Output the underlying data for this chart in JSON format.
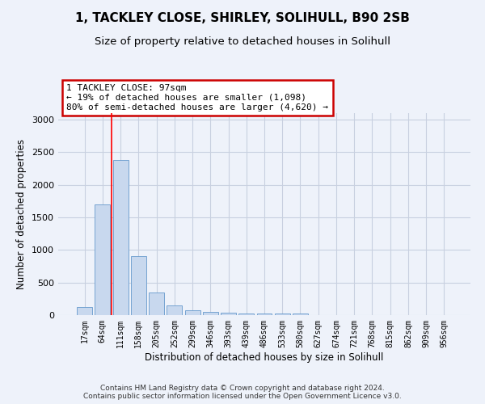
{
  "title1": "1, TACKLEY CLOSE, SHIRLEY, SOLIHULL, B90 2SB",
  "title2": "Size of property relative to detached houses in Solihull",
  "xlabel": "Distribution of detached houses by size in Solihull",
  "ylabel": "Number of detached properties",
  "categories": [
    "17sqm",
    "64sqm",
    "111sqm",
    "158sqm",
    "205sqm",
    "252sqm",
    "299sqm",
    "346sqm",
    "393sqm",
    "439sqm",
    "486sqm",
    "533sqm",
    "580sqm",
    "627sqm",
    "674sqm",
    "721sqm",
    "768sqm",
    "815sqm",
    "862sqm",
    "909sqm",
    "956sqm"
  ],
  "values": [
    130,
    1700,
    2380,
    910,
    345,
    145,
    80,
    55,
    40,
    30,
    25,
    20,
    30,
    0,
    0,
    0,
    0,
    0,
    0,
    0,
    0
  ],
  "bar_color": "#c8d8ee",
  "bar_edge_color": "#6699cc",
  "annotation_title": "1 TACKLEY CLOSE: 97sqm",
  "annotation_line1": "← 19% of detached houses are smaller (1,098)",
  "annotation_line2": "80% of semi-detached houses are larger (4,620) →",
  "annotation_box_color": "#ffffff",
  "annotation_box_edge_color": "#cc0000",
  "footer1": "Contains HM Land Registry data © Crown copyright and database right 2024.",
  "footer2": "Contains public sector information licensed under the Open Government Licence v3.0.",
  "ylim": [
    0,
    3100
  ],
  "yticks": [
    0,
    500,
    1000,
    1500,
    2000,
    2500,
    3000
  ],
  "bg_color": "#eef2fa",
  "grid_color": "#c8d0e0",
  "title1_fontsize": 11,
  "title2_fontsize": 9.5,
  "xlabel_fontsize": 8.5,
  "ylabel_fontsize": 8.5,
  "footer_fontsize": 6.5
}
